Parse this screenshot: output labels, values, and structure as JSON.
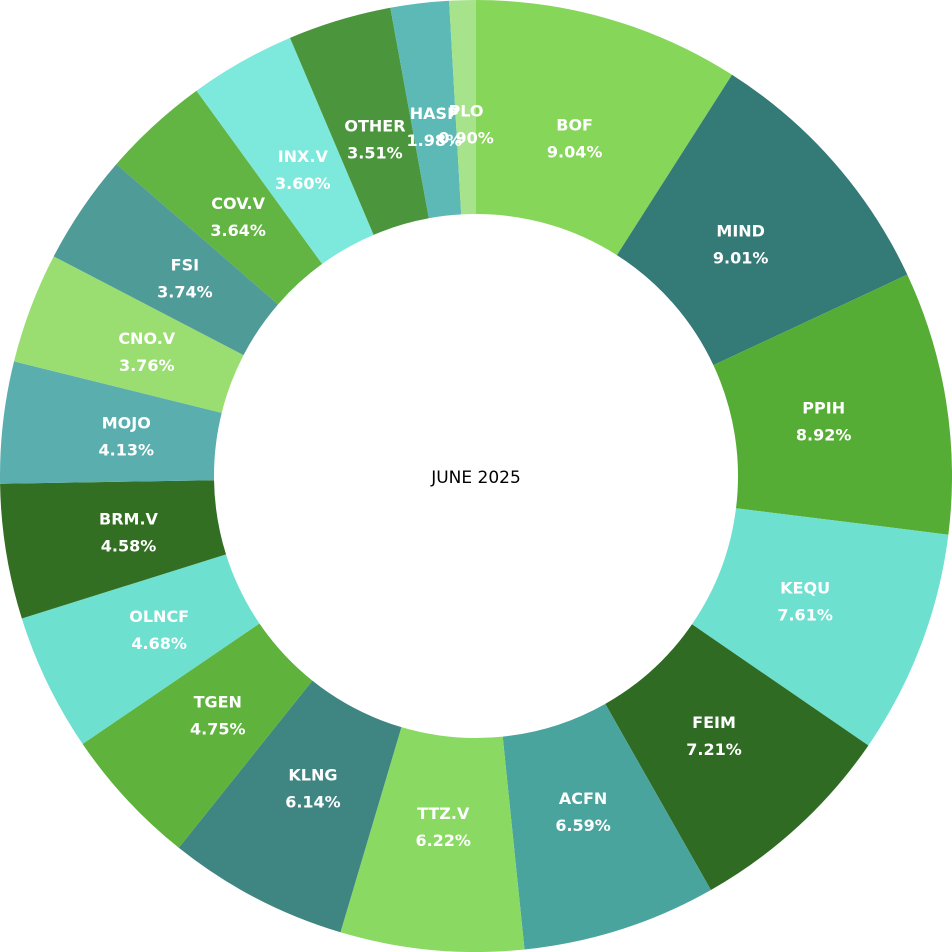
{
  "chart_data": {
    "type": "donut",
    "title": "JUNE 2025",
    "categories": [
      "BOF",
      "MIND",
      "PPIH",
      "KEQU",
      "FEIM",
      "ACFN",
      "TTZ.V",
      "KLNG",
      "TGEN",
      "OLNCF",
      "BRM.V",
      "MOJO",
      "CNO.V",
      "FSI",
      "COV.V",
      "INX.V",
      "OTHER",
      "HASP",
      "PLO"
    ],
    "values": [
      9.04,
      9.01,
      8.92,
      7.61,
      7.21,
      6.59,
      6.22,
      6.14,
      4.75,
      4.68,
      4.58,
      4.13,
      3.76,
      3.74,
      3.64,
      3.6,
      3.51,
      1.98,
      0.9
    ],
    "value_labels": [
      "9.04%",
      "9.01%",
      "8.92%",
      "7.61%",
      "7.21%",
      "6.59%",
      "6.22%",
      "6.14%",
      "4.75%",
      "4.68%",
      "4.58%",
      "4.13%",
      "3.76%",
      "3.74%",
      "3.64%",
      "3.60%",
      "3.51%",
      "1.98%",
      "0.90%"
    ],
    "colors": [
      "#86d65a",
      "#347a76",
      "#56ad35",
      "#6de0d0",
      "#2f6b22",
      "#4aa49e",
      "#8ad963",
      "#3f8682",
      "#5fb33c",
      "#6de0d0",
      "#336f22",
      "#5aaeae",
      "#9ade72",
      "#4f9b98",
      "#62b443",
      "#7de8dc",
      "#4b963c",
      "#5cb9b6",
      "#a6e38a"
    ]
  }
}
